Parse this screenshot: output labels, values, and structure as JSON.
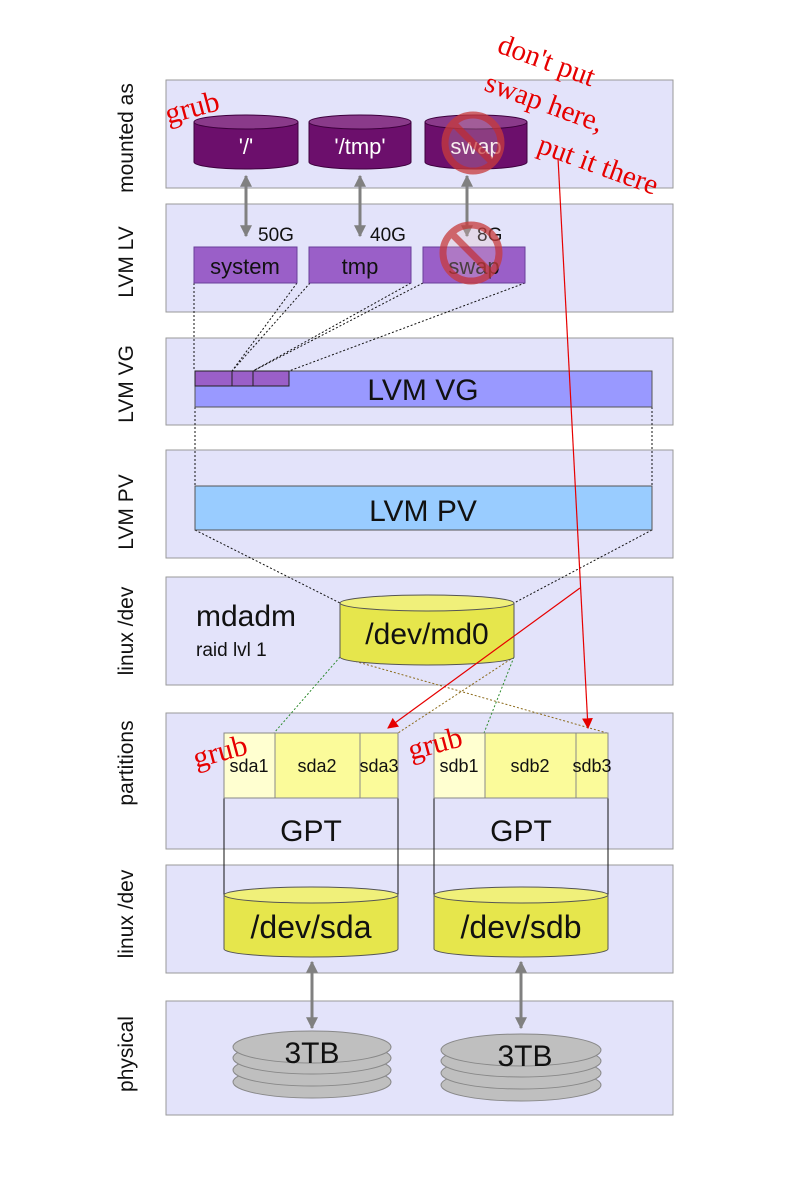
{
  "layers": [
    {
      "label": "mounted as"
    },
    {
      "label": "LVM LV"
    },
    {
      "label": "LVM VG"
    },
    {
      "label": "LVM PV"
    },
    {
      "label": "linux /dev"
    },
    {
      "label": "partitions"
    },
    {
      "label": "linux /dev"
    },
    {
      "label": "physical"
    }
  ],
  "mounts": [
    {
      "label": "'/'"
    },
    {
      "label": "'/tmp'"
    },
    {
      "label": "swap"
    }
  ],
  "lvs": [
    {
      "label": "system",
      "size": "50G"
    },
    {
      "label": "tmp",
      "size": "40G"
    },
    {
      "label": "swap",
      "size": "8G"
    }
  ],
  "vg": {
    "label": "LVM VG"
  },
  "pv": {
    "label": "LVM PV"
  },
  "md": {
    "title": "mdadm",
    "subtitle": "raid lvl 1",
    "device": "/dev/md0"
  },
  "disks": [
    {
      "partitions": [
        "sda1",
        "sda2",
        "sda3"
      ],
      "table": "GPT",
      "device": "/dev/sda",
      "capacity": "3TB"
    },
    {
      "partitions": [
        "sdb1",
        "sdb2",
        "sdb3"
      ],
      "table": "GPT",
      "device": "/dev/sdb",
      "capacity": "3TB"
    }
  ],
  "annotations": {
    "grub": "grub",
    "note_lines": [
      "don't put",
      "swap here,",
      "put it there"
    ]
  },
  "colors": {
    "layer_bg": "#e3e3fa",
    "layer_border": "#9a9a9a",
    "mount_purple": "#6c0f6c",
    "lv_purple": "#9a5fc8",
    "vg_blue": "#9999ff",
    "pv_blue": "#99ccff",
    "yellow": "#e6e64c",
    "partition_yellow": "#fbfb9a",
    "red": "#e60000",
    "disk_gray": "#bfbfbf"
  }
}
